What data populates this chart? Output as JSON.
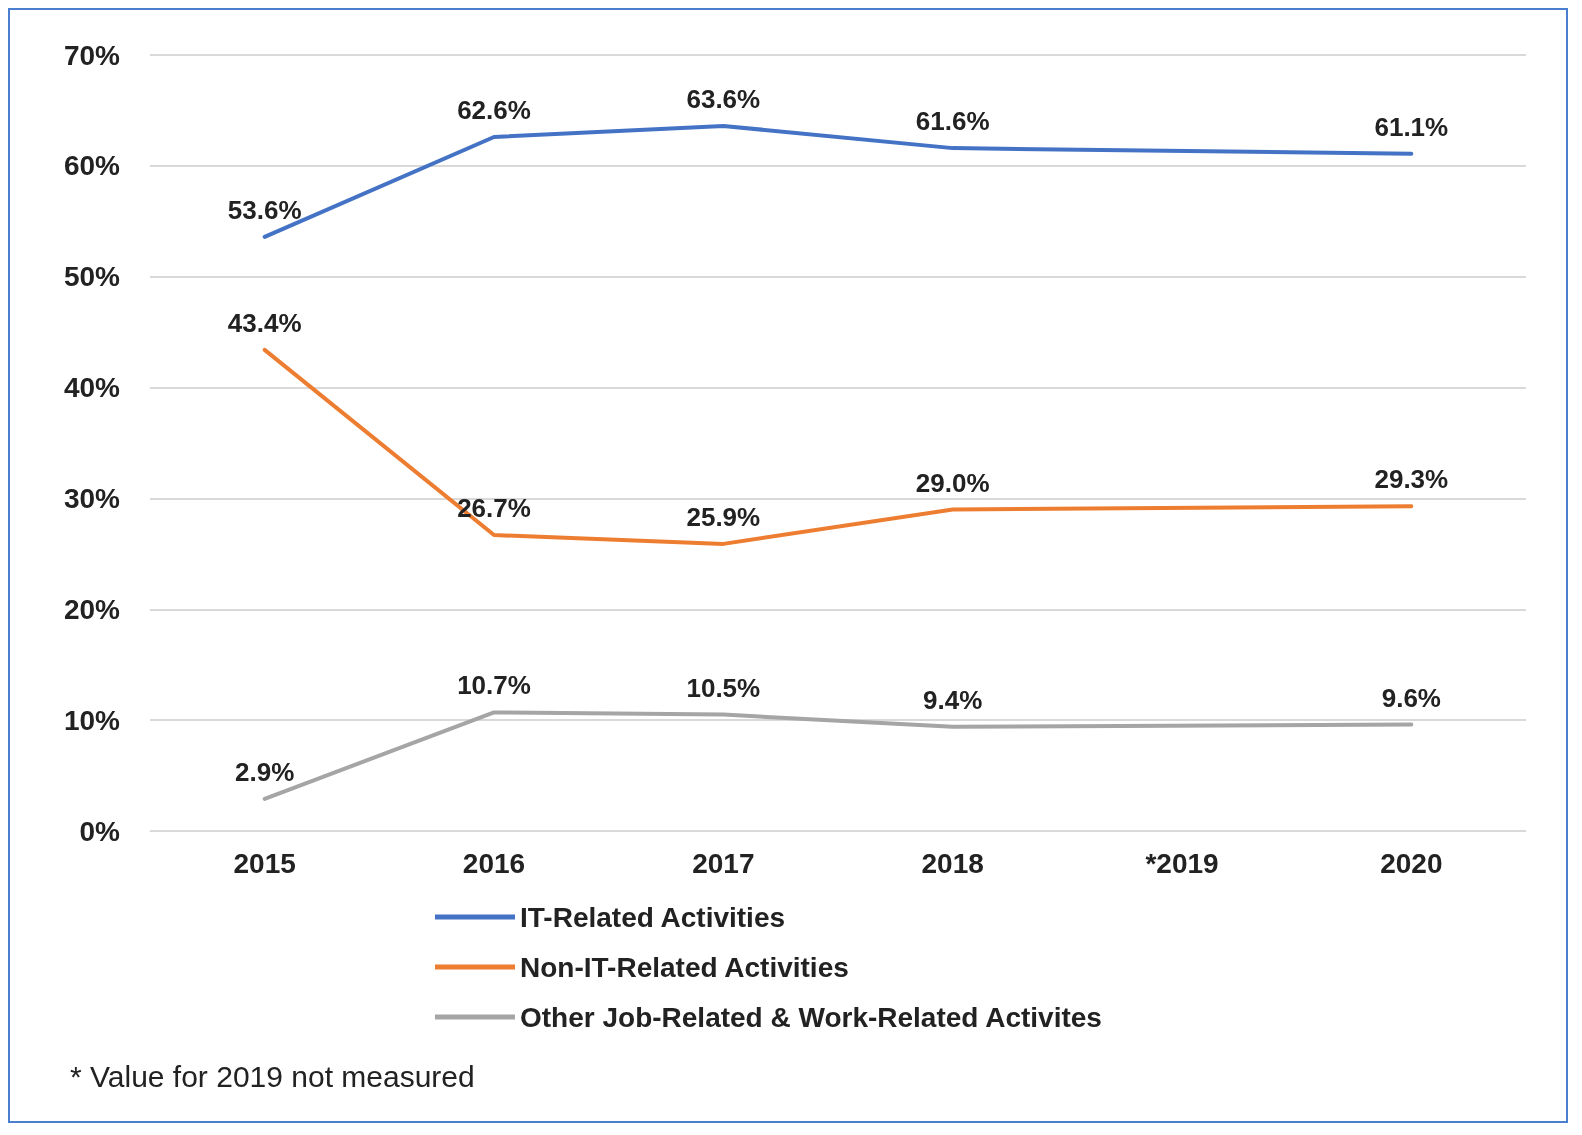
{
  "chart_data": {
    "type": "line",
    "categories": [
      "2015",
      "2016",
      "2017",
      "2018",
      "*2019",
      "2020"
    ],
    "series": [
      {
        "name": "IT-Related Activities",
        "color": "#4472c4",
        "values": [
          53.6,
          62.6,
          63.6,
          61.6,
          null,
          61.1
        ],
        "value_labels": [
          "53.6%",
          "62.6%",
          "63.6%",
          "61.6%",
          null,
          "61.1%"
        ]
      },
      {
        "name": "Non-IT-Related Activities",
        "color": "#ed7d31",
        "values": [
          43.4,
          26.7,
          25.9,
          29.0,
          null,
          29.3
        ],
        "value_labels": [
          "43.4%",
          "26.7%",
          "25.9%",
          "29.0%",
          null,
          "29.3%"
        ]
      },
      {
        "name": "Other Job-Related & Work-Related Activites",
        "color": "#a5a5a5",
        "values": [
          2.9,
          10.7,
          10.5,
          9.4,
          null,
          9.6
        ],
        "value_labels": [
          "2.9%",
          "10.7%",
          "10.5%",
          "9.4%",
          null,
          "9.6%"
        ]
      }
    ],
    "ylim": [
      0,
      70
    ],
    "yticks": [
      {
        "value": 0,
        "label": "0%"
      },
      {
        "value": 10,
        "label": "10%"
      },
      {
        "value": 20,
        "label": "20%"
      },
      {
        "value": 30,
        "label": "30%"
      },
      {
        "value": 40,
        "label": "40%"
      },
      {
        "value": 50,
        "label": "50%"
      },
      {
        "value": 60,
        "label": "60%"
      },
      {
        "value": 70,
        "label": "70%"
      }
    ],
    "grid": "y",
    "legend": "bottom",
    "marker": "none",
    "line_style": "solid",
    "annotations": [
      "* Value for 2019 not measured"
    ]
  }
}
